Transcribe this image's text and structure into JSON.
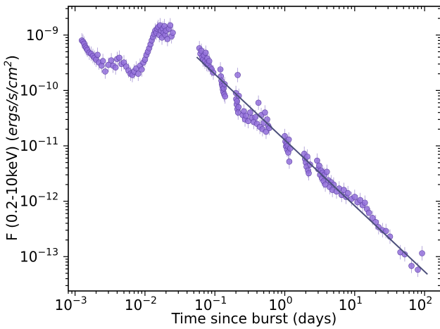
{
  "chart_data": {
    "type": "scatter",
    "xlabel": "Time since burst (days)",
    "ylabel": "F (0.2-10keV) (ergs/s/cm²)",
    "ylabel_parts": {
      "main": "F (0.2-10keV) (",
      "unit": "ergs/s/cm",
      "exp": "2",
      "close": ")"
    },
    "xscale": "log",
    "yscale": "log",
    "xlim": [
      0.0008,
      170
    ],
    "ylim": [
      2.4e-14,
      3.3e-09
    ],
    "x_ticks": [
      {
        "base": "10",
        "exp": "−3",
        "value": 0.001
      },
      {
        "base": "10",
        "exp": "−2",
        "value": 0.01
      },
      {
        "base": "10",
        "exp": "−1",
        "value": 0.1
      },
      {
        "base": "10",
        "exp": "0",
        "value": 1
      },
      {
        "base": "10",
        "exp": "1",
        "value": 10
      },
      {
        "base": "10",
        "exp": "2",
        "value": 100
      }
    ],
    "y_ticks": [
      {
        "base": "10",
        "exp": "−13",
        "value": 1e-13
      },
      {
        "base": "10",
        "exp": "−12",
        "value": 1e-12
      },
      {
        "base": "10",
        "exp": "−11",
        "value": 1e-11
      },
      {
        "base": "10",
        "exp": "−10",
        "value": 1e-10
      },
      {
        "base": "10",
        "exp": "−9",
        "value": 1e-09
      }
    ],
    "grid": false,
    "colors": {
      "points": "#9370db",
      "point_edge": "#5b3fa0",
      "fit_line": "#4b4f7a"
    },
    "series": [
      {
        "kind": "points",
        "points": [
          [
            0.00125,
            8e-10
          ],
          [
            0.0013,
            7.6e-10
          ],
          [
            0.00135,
            7e-10
          ],
          [
            0.0014,
            6.2e-10
          ],
          [
            0.00145,
            5.8e-10
          ],
          [
            0.0015,
            5.4e-10
          ],
          [
            0.0016,
            4.8e-10
          ],
          [
            0.0017,
            4.6e-10
          ],
          [
            0.0018,
            4.2e-10
          ],
          [
            0.0019,
            3.9e-10
          ],
          [
            0.002,
            3.6e-10
          ],
          [
            0.0021,
            4.4e-10
          ],
          [
            0.0022,
            3.2e-10
          ],
          [
            0.0024,
            2.8e-10
          ],
          [
            0.0025,
            3.4e-10
          ],
          [
            0.0027,
            2.2e-10
          ],
          [
            0.003,
            2.9e-10
          ],
          [
            0.0033,
            3.5e-10
          ],
          [
            0.0035,
            2.8e-10
          ],
          [
            0.0038,
            2.6e-10
          ],
          [
            0.004,
            3.7e-10
          ],
          [
            0.0043,
            3.9e-10
          ],
          [
            0.0046,
            3e-10
          ],
          [
            0.005,
            3.2e-10
          ],
          [
            0.0054,
            2.7e-10
          ],
          [
            0.0058,
            2.3e-10
          ],
          [
            0.0062,
            2e-10
          ],
          [
            0.0066,
            1.9e-10
          ],
          [
            0.007,
            2.2e-10
          ],
          [
            0.0075,
            2.5e-10
          ],
          [
            0.008,
            2e-10
          ],
          [
            0.0085,
            2.8e-10
          ],
          [
            0.009,
            2.4e-10
          ],
          [
            0.0095,
            3.2e-10
          ],
          [
            0.01,
            3.6e-10
          ],
          [
            0.0105,
            4.4e-10
          ],
          [
            0.011,
            5e-10
          ],
          [
            0.0115,
            5.8e-10
          ],
          [
            0.012,
            6.8e-10
          ],
          [
            0.0125,
            8e-10
          ],
          [
            0.013,
            9.2e-10
          ],
          [
            0.0135,
            1.05e-09
          ],
          [
            0.014,
            1.2e-09
          ],
          [
            0.0145,
            1.1e-09
          ],
          [
            0.015,
            1.3e-09
          ],
          [
            0.0155,
            1.4e-09
          ],
          [
            0.016,
            1e-09
          ],
          [
            0.0165,
            1.5e-09
          ],
          [
            0.017,
            1.2e-09
          ],
          [
            0.0175,
            9e-10
          ],
          [
            0.018,
            1.3e-09
          ],
          [
            0.0185,
            1.1e-09
          ],
          [
            0.019,
            1.45e-09
          ],
          [
            0.0195,
            1e-09
          ],
          [
            0.02,
            1.2e-09
          ],
          [
            0.021,
            8.5e-10
          ],
          [
            0.022,
            1.3e-09
          ],
          [
            0.023,
            1.5e-09
          ],
          [
            0.024,
            9.5e-10
          ],
          [
            0.025,
            1.1e-09
          ],
          [
            0.06,
            5.8e-10
          ],
          [
            0.062,
            4.6e-10
          ],
          [
            0.064,
            5.2e-10
          ],
          [
            0.066,
            4e-10
          ],
          [
            0.068,
            3.6e-10
          ],
          [
            0.07,
            4.3e-10
          ],
          [
            0.072,
            3.3e-10
          ],
          [
            0.074,
            4.8e-10
          ],
          [
            0.076,
            3e-10
          ],
          [
            0.078,
            3.8e-10
          ],
          [
            0.08,
            2.9e-10
          ],
          [
            0.083,
            3.4e-10
          ],
          [
            0.086,
            2.6e-10
          ],
          [
            0.09,
            2.4e-10
          ],
          [
            0.095,
            2.1e-10
          ],
          [
            0.12,
            2.4e-10
          ],
          [
            0.122,
            1.8e-10
          ],
          [
            0.124,
            1.5e-10
          ],
          [
            0.126,
            1.3e-10
          ],
          [
            0.128,
            1.2e-10
          ],
          [
            0.13,
            1.05e-10
          ],
          [
            0.132,
            9.4e-11
          ],
          [
            0.134,
            1.1e-10
          ],
          [
            0.136,
            8.5e-11
          ],
          [
            0.138,
            1.3e-10
          ],
          [
            0.14,
            7.8e-11
          ],
          [
            0.2,
            9e-11
          ],
          [
            0.202,
            7e-11
          ],
          [
            0.205,
            5.6e-11
          ],
          [
            0.208,
            6.4e-11
          ],
          [
            0.21,
            4.6e-11
          ],
          [
            0.212,
            1.9e-10
          ],
          [
            0.215,
            4e-11
          ],
          [
            0.218,
            5e-11
          ],
          [
            0.22,
            8e-11
          ],
          [
            0.25,
            3.6e-11
          ],
          [
            0.26,
            4.2e-11
          ],
          [
            0.27,
            3e-11
          ],
          [
            0.28,
            3.5e-11
          ],
          [
            0.3,
            2.8e-11
          ],
          [
            0.32,
            4e-11
          ],
          [
            0.34,
            3.2e-11
          ],
          [
            0.36,
            2.7e-11
          ],
          [
            0.38,
            3.3e-11
          ],
          [
            0.4,
            2.5e-11
          ],
          [
            0.42,
            6e-11
          ],
          [
            0.44,
            2.2e-11
          ],
          [
            0.46,
            3.6e-11
          ],
          [
            0.48,
            2e-11
          ],
          [
            0.5,
            2.6e-11
          ],
          [
            0.52,
            4e-11
          ],
          [
            0.54,
            1.8e-11
          ],
          [
            0.56,
            3e-11
          ],
          [
            0.58,
            2.3e-11
          ],
          [
            0.6,
            2.1e-11
          ],
          [
            1.0,
            1.5e-11
          ],
          [
            1.02,
            1.2e-11
          ],
          [
            1.04,
            9.8e-12
          ],
          [
            1.06,
            1.1e-11
          ],
          [
            1.08,
            8.6e-12
          ],
          [
            1.1,
            1e-11
          ],
          [
            1.12,
            7.6e-12
          ],
          [
            1.14,
            1.3e-11
          ],
          [
            1.16,
            5.2e-12
          ],
          [
            1.2,
            9e-12
          ],
          [
            1.9,
            7.2e-12
          ],
          [
            1.95,
            5.8e-12
          ],
          [
            2.0,
            5e-12
          ],
          [
            2.05,
            4.2e-12
          ],
          [
            2.1,
            6.4e-12
          ],
          [
            2.15,
            3.6e-12
          ],
          [
            2.2,
            3.2e-12
          ],
          [
            2.3,
            4.6e-12
          ],
          [
            2.9,
            5.4e-12
          ],
          [
            3.0,
            3.8e-12
          ],
          [
            3.1,
            4.4e-12
          ],
          [
            3.2,
            3e-12
          ],
          [
            3.3,
            3.6e-12
          ],
          [
            3.4,
            2.6e-12
          ],
          [
            3.5,
            3.3e-12
          ],
          [
            3.6,
            2.3e-12
          ],
          [
            3.7,
            3e-12
          ],
          [
            3.8,
            2e-12
          ],
          [
            4.0,
            3.4e-12
          ],
          [
            4.2,
            2.4e-12
          ],
          [
            4.4,
            1.8e-12
          ],
          [
            4.6,
            2.2e-12
          ],
          [
            4.8,
            1.6e-12
          ],
          [
            5.0,
            2e-12
          ],
          [
            5.5,
            1.5e-12
          ],
          [
            6.0,
            1.7e-12
          ],
          [
            6.5,
            1.3e-12
          ],
          [
            7.0,
            1.6e-12
          ],
          [
            7.5,
            1.2e-12
          ],
          [
            8.0,
            1.4e-12
          ],
          [
            9.0,
            1.1e-12
          ],
          [
            10.0,
            1.2e-12
          ],
          [
            11.0,
            9.6e-13
          ],
          [
            12.0,
            1.05e-12
          ],
          [
            13.0,
            8.5e-13
          ],
          [
            14.0,
            9.4e-13
          ],
          [
            15.0,
            7.2e-13
          ],
          [
            16.0,
            6.2e-13
          ],
          [
            18.0,
            5e-13
          ],
          [
            20.0,
            4.2e-13
          ],
          [
            22.0,
            3.4e-13
          ],
          [
            25.0,
            3e-13
          ],
          [
            28.0,
            2.9e-13
          ],
          [
            32.0,
            2.3e-13
          ],
          [
            45.0,
            1.2e-13
          ],
          [
            52.0,
            1.1e-13
          ],
          [
            65.0,
            6.8e-14
          ],
          [
            80.0,
            5.8e-14
          ],
          [
            92.0,
            1.15e-13
          ]
        ]
      },
      {
        "kind": "fit_line",
        "points": [
          [
            0.055,
            4e-10
          ],
          [
            110.0,
            4.8e-14
          ]
        ]
      }
    ]
  }
}
